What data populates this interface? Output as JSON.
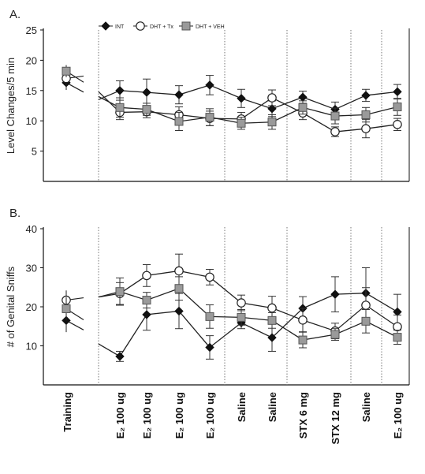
{
  "chart_data": [
    {
      "panel": "A.",
      "type": "line",
      "ylabel": "Level Changes/5 min",
      "ylim": [
        0,
        25
      ],
      "yticks": [
        5,
        10,
        15,
        20,
        25
      ],
      "training": [
        {
          "name": "INT",
          "value": 16.3,
          "err": 1.2
        },
        {
          "name": "DHT + Tx",
          "value": 17.0,
          "err": 1.2
        },
        {
          "name": "DHT + VEH",
          "value": 18.2,
          "err": 1.0
        }
      ],
      "series": [
        {
          "name": "INT",
          "values": [
            15.0,
            14.7,
            14.3,
            15.9,
            13.7,
            12.0,
            13.9,
            11.9,
            14.2,
            14.8
          ],
          "err": [
            1.6,
            2.2,
            1.5,
            1.6,
            1.5,
            1.3,
            1.0,
            1.2,
            1.0,
            1.2
          ]
        },
        {
          "name": "DHT + Tx",
          "values": [
            11.4,
            11.5,
            11.0,
            10.4,
            10.3,
            13.8,
            11.3,
            8.2,
            8.7,
            9.4
          ],
          "err": [
            1.2,
            1.0,
            1.3,
            1.2,
            1.1,
            1.3,
            1.1,
            0.8,
            1.5,
            1.0
          ]
        },
        {
          "name": "DHT + VEH",
          "values": [
            12.2,
            11.9,
            9.9,
            10.6,
            9.6,
            9.8,
            12.2,
            10.8,
            11.0,
            12.3
          ],
          "err": [
            1.6,
            1.0,
            1.5,
            1.4,
            1.0,
            1.2,
            1.1,
            1.3,
            1.2,
            1.4
          ]
        }
      ]
    },
    {
      "panel": "B.",
      "type": "line",
      "ylabel": "# of Genital Sniffs",
      "ylim": [
        0,
        40
      ],
      "yticks": [
        10,
        20,
        30,
        40
      ],
      "training": [
        {
          "name": "INT",
          "value": 16.5,
          "err": 3.0
        },
        {
          "name": "DHT + Tx",
          "value": 21.7,
          "err": 2.5
        },
        {
          "name": "DHT + VEH",
          "value": 19.5,
          "err": 3.0
        }
      ],
      "series": [
        {
          "name": "INT",
          "values": [
            7.3,
            18.0,
            18.9,
            9.6,
            15.9,
            12.1,
            19.6,
            23.2,
            23.5,
            18.7
          ],
          "err": [
            1.3,
            4.0,
            4.5,
            3.0,
            1.5,
            3.5,
            3.0,
            4.5,
            6.5,
            4.5
          ]
        },
        {
          "name": "DHT + Tx",
          "values": [
            23.4,
            28.0,
            29.2,
            27.6,
            21.0,
            19.7,
            16.6,
            13.8,
            20.4,
            14.9
          ],
          "err": [
            2.8,
            2.8,
            4.3,
            2.0,
            2.0,
            3.0,
            3.0,
            2.0,
            4.5,
            3.0
          ]
        },
        {
          "name": "DHT + VEH",
          "values": [
            23.9,
            21.7,
            24.7,
            17.5,
            17.3,
            16.5,
            11.5,
            12.9,
            16.3,
            12.2
          ],
          "err": [
            3.5,
            2.0,
            3.0,
            3.0,
            2.0,
            2.0,
            2.0,
            1.5,
            3.0,
            1.8
          ]
        }
      ]
    }
  ],
  "x_labels": [
    "E₂ 100 ug",
    "E₂ 100 ug",
    "E₂ 100 ug",
    "E₂ 100 ug",
    "Saline",
    "Saline",
    "STX 6 mg",
    "STX 12 mg",
    "Saline",
    "E₂ 100 ug"
  ],
  "training_label": "Training",
  "legend": [
    {
      "name": "INT",
      "marker": "diamond"
    },
    {
      "name": "DHT + Tx",
      "marker": "circle"
    },
    {
      "name": "DHT + VEH",
      "marker": "square"
    }
  ],
  "colors": {
    "int": "#111111",
    "tx_fill": "#ffffff",
    "veh_fill": "#9a9a9a",
    "line": "#222222"
  }
}
